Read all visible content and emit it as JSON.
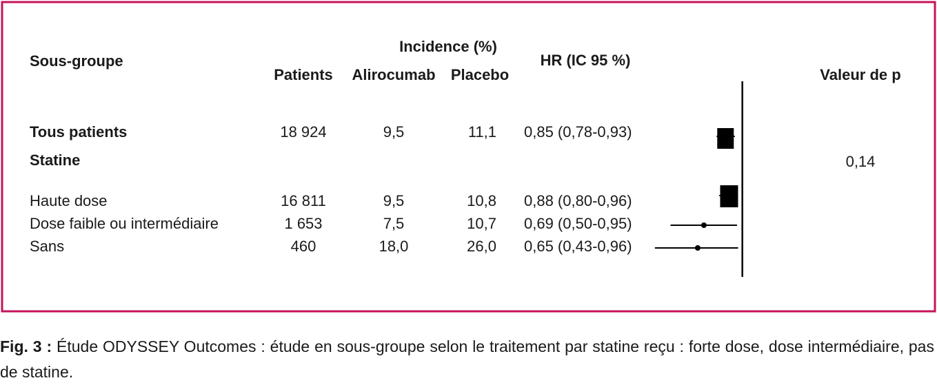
{
  "chart_data": {
    "type": "forest",
    "columns": [
      "Sous-groupe",
      "Patients",
      "Alirocumab",
      "Placebo",
      "HR (IC 95 %)",
      "Valeur de p"
    ],
    "group_header": "Incidence (%)",
    "xlim": [
      0.4,
      1.1
    ],
    "log_scale": true,
    "reference_line": 1,
    "border_color": "#c4135a",
    "rows": [
      {
        "label": "Tous patients",
        "bold": true,
        "patients": "18 924",
        "alirocumab": "9,5",
        "placebo": "11,1",
        "hr": 0.85,
        "lo": 0.78,
        "hi": 0.93,
        "hr_label": "0,85 (0,78-0,93)",
        "marker": "square"
      },
      {
        "label": "Statine",
        "bold": true,
        "p": "0,14"
      },
      {
        "label": "Haute dose",
        "patients": "16 811",
        "alirocumab": "9,5",
        "placebo": "10,8",
        "hr": 0.88,
        "lo": 0.8,
        "hi": 0.96,
        "hr_label": "0,88 (0,80-0,96)",
        "marker": "square"
      },
      {
        "label": "Dose faible ou intermédiaire",
        "patients": "1 653",
        "alirocumab": "7,5",
        "placebo": "10,7",
        "hr": 0.69,
        "lo": 0.5,
        "hi": 0.95,
        "hr_label": "0,69 (0,50-0,95)",
        "marker": "dot"
      },
      {
        "label": "Sans",
        "patients": "460",
        "alirocumab": "18,0",
        "placebo": "26,0",
        "hr": 0.65,
        "lo": 0.43,
        "hi": 0.96,
        "hr_label": "0,65 (0,43-0,96)",
        "marker": "dot"
      }
    ]
  },
  "caption": {
    "label": "Fig. 3 :",
    "text": "Étude ODYSSEY Outcomes : étude en sous-groupe selon le traitement par statine reçu : forte dose, dose intermédiaire, pas de statine."
  }
}
